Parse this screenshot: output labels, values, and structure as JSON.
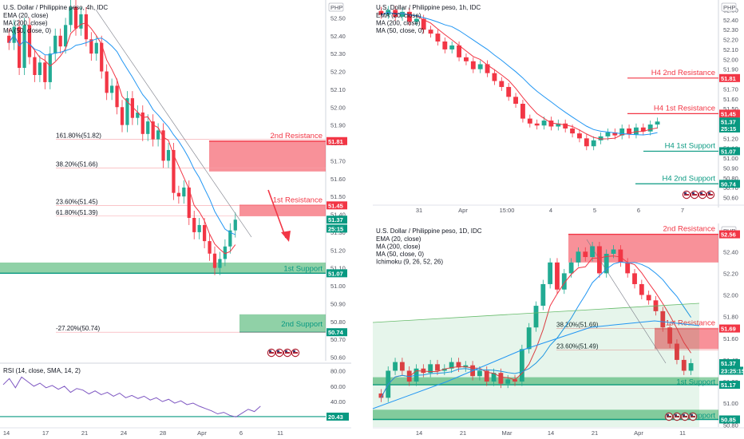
{
  "chart_data": [
    {
      "type": "candlestick",
      "panel": "4h",
      "title": "U.S. Dollar / Philippine peso, 4h, IDC",
      "indicators": [
        "EMA (20, close)",
        "MA (200, close)",
        "MA (50, close, 0)"
      ],
      "currency": "PHP",
      "ylim": [
        50.58,
        52.6
      ],
      "yticks": [
        "52.50",
        "52.40",
        "52.30",
        "52.20",
        "52.10",
        "52.00",
        "51.90",
        "51.80",
        "51.70",
        "51.60",
        "51.50",
        "51.40",
        "51.30",
        "51.20",
        "51.10",
        "51.00",
        "50.90",
        "50.80",
        "50.70",
        "50.60"
      ],
      "xticks": [
        "14",
        "17",
        "21",
        "24",
        "28",
        "Apr",
        "6",
        "11"
      ],
      "close_path": [
        52.36,
        52.45,
        52.22,
        52.46,
        52.28,
        52.18,
        52.25,
        52.14,
        52.3,
        52.4,
        52.34,
        52.46,
        52.56,
        52.44,
        52.52,
        52.38,
        52.3,
        52.36,
        52.2,
        52.08,
        52.12,
        52.0,
        51.9,
        52.05,
        51.94,
        51.97,
        51.85,
        51.92,
        51.82,
        51.87,
        51.7,
        51.76,
        51.52,
        51.5,
        51.55,
        51.38,
        51.3,
        51.34,
        51.25,
        51.18,
        51.1,
        51.15,
        51.22,
        51.31,
        51.37
      ],
      "price_tags": [
        {
          "text": "51.81",
          "value": 51.81,
          "color": "#f23645"
        },
        {
          "text": "51.45",
          "value": 51.45,
          "color": "#f23645"
        },
        {
          "text": "51.37",
          "value": 51.37,
          "color": "#089981"
        },
        {
          "text": "25:15",
          "value": 51.32,
          "color": "#089981"
        },
        {
          "text": "51.07",
          "value": 51.07,
          "color": "#089981"
        },
        {
          "text": "50.74",
          "value": 50.74,
          "color": "#089981"
        }
      ],
      "zones": [
        {
          "label": "2nd Resistance",
          "kind": "resistance",
          "top": 51.81,
          "bottom": 51.64
        },
        {
          "label": "1st Resistance",
          "kind": "resistance",
          "top": 51.45,
          "bottom": 51.39
        },
        {
          "label": "1st Support",
          "kind": "support",
          "top": 51.13,
          "bottom": 51.07
        },
        {
          "label": "2nd Support",
          "kind": "support",
          "top": 50.84,
          "bottom": 50.74
        }
      ],
      "fib_labels": [
        {
          "text": "161.80%(51.82)",
          "value": 51.82
        },
        {
          "text": "38.20%(51.66)",
          "value": 51.66
        },
        {
          "text": "23.60%(51.45)",
          "value": 51.45
        },
        {
          "text": "61.80%(51.39)",
          "value": 51.39
        },
        {
          "text": "-27.20%(50.74)",
          "value": 50.74
        }
      ],
      "rsi": {
        "label": "RSI (14, close, SMA, 14, 2)",
        "yticks": [
          "80.00",
          "60.00",
          "40.00"
        ],
        "level_tag": "20.43",
        "values": [
          62,
          70,
          58,
          72,
          66,
          60,
          64,
          58,
          61,
          56,
          60,
          52,
          57,
          55,
          50,
          54,
          49,
          52,
          47,
          51,
          45,
          48,
          44,
          47,
          42,
          45,
          40,
          43,
          38,
          41,
          36,
          38,
          34,
          31,
          28,
          24,
          26,
          22,
          20,
          25,
          30,
          27,
          34
        ]
      }
    },
    {
      "type": "candlestick",
      "panel": "1h",
      "title": "U.S. Dollar / Philippine peso, 1h, IDC",
      "indicators": [
        "EMA (20, close)",
        "MA (200, close)",
        "MA (50, close, 0)"
      ],
      "currency": "PHP",
      "ylim": [
        50.5,
        52.6
      ],
      "yticks": [
        "52.50",
        "52.40",
        "52.30",
        "52.20",
        "52.10",
        "52.00",
        "51.90",
        "51.80",
        "51.70",
        "51.60",
        "51.50",
        "51.40",
        "51.30",
        "51.20",
        "51.10",
        "51.00",
        "50.90",
        "50.80",
        "50.70",
        "50.60"
      ],
      "xticks": [
        "31",
        "Apr",
        "15:00",
        "4",
        "5",
        "6",
        "7"
      ],
      "close_path": [
        52.45,
        52.5,
        52.43,
        52.48,
        52.38,
        52.41,
        52.3,
        52.26,
        52.18,
        52.1,
        52.14,
        52.02,
        51.98,
        51.9,
        51.95,
        51.86,
        51.78,
        51.72,
        51.62,
        51.55,
        51.4,
        51.35,
        51.33,
        51.38,
        51.32,
        51.35,
        51.3,
        51.25,
        51.2,
        51.12,
        51.18,
        51.22,
        51.26,
        51.23,
        51.3,
        51.24,
        51.31,
        51.27,
        51.34,
        51.37
      ],
      "price_tags": [
        {
          "text": "51.81",
          "value": 51.81,
          "color": "#f23645"
        },
        {
          "text": "51.45",
          "value": 51.45,
          "color": "#f23645"
        },
        {
          "text": "51.37",
          "value": 51.37,
          "color": "#089981"
        },
        {
          "text": "25:15",
          "value": 51.3,
          "color": "#089981"
        },
        {
          "text": "51.07",
          "value": 51.07,
          "color": "#089981"
        },
        {
          "text": "50.74",
          "value": 50.74,
          "color": "#089981"
        }
      ],
      "levels": [
        {
          "label": "H4 2nd Resistance",
          "kind": "resistance",
          "value": 51.81
        },
        {
          "label": "H4 1st Resistance",
          "kind": "resistance",
          "value": 51.45
        },
        {
          "label": "H4 1st Support",
          "kind": "support",
          "value": 51.07
        },
        {
          "label": "H4 2nd Support",
          "kind": "support",
          "value": 50.74
        }
      ]
    },
    {
      "type": "candlestick",
      "panel": "1D",
      "title": "U.S. Dollar / Philippine peso, 1D, IDC",
      "indicators": [
        "EMA (20, close)",
        "MA (200, close)",
        "MA (50, close, 0)",
        "Ichimoku (9, 26, 52, 26)"
      ],
      "currency": "PHP",
      "ylim": [
        50.78,
        52.66
      ],
      "yticks": [
        "52.40",
        "52.20",
        "52.00",
        "51.80",
        "51.60",
        "51.40",
        "51.20",
        "51.00",
        "50.80"
      ],
      "xticks": [
        "14",
        "21",
        "Mar",
        "14",
        "21",
        "Apr",
        "11"
      ],
      "close_path": [
        51.05,
        51.3,
        51.38,
        51.3,
        51.2,
        51.32,
        51.28,
        51.36,
        51.3,
        51.32,
        51.38,
        51.33,
        51.35,
        51.25,
        51.3,
        51.2,
        51.28,
        51.18,
        51.22,
        51.2,
        51.5,
        51.7,
        51.9,
        52.1,
        52.3,
        52.05,
        52.2,
        52.3,
        52.4,
        52.35,
        52.45,
        52.2,
        52.38,
        52.42,
        52.3,
        52.2,
        52.1,
        52.0,
        51.95,
        51.85,
        51.7,
        51.55,
        51.4,
        51.3,
        51.37
      ],
      "price_tags": [
        {
          "text": "52.56",
          "value": 52.56,
          "color": "#f23645"
        },
        {
          "text": "51.69",
          "value": 51.69,
          "color": "#f23645"
        },
        {
          "text": "51.37",
          "value": 51.37,
          "color": "#089981"
        },
        {
          "text": "23:25:15",
          "value": 51.3,
          "color": "#089981"
        },
        {
          "text": "51.17",
          "value": 51.17,
          "color": "#089981"
        },
        {
          "text": "50.85",
          "value": 50.85,
          "color": "#089981"
        }
      ],
      "zones": [
        {
          "label": "2nd Resistance",
          "kind": "resistance",
          "top": 52.56,
          "bottom": 52.3
        },
        {
          "label": "1st Resistance",
          "kind": "resistance",
          "top": 51.69,
          "bottom": 51.5
        },
        {
          "label": "1st Support",
          "kind": "support",
          "top": 51.24,
          "bottom": 51.17
        },
        {
          "label": "2nd Support",
          "kind": "support",
          "top": 50.94,
          "bottom": 50.85
        }
      ],
      "fib_labels": [
        {
          "text": "38.20%(51.69)",
          "value": 51.69
        },
        {
          "text": "23.60%(51.49)",
          "value": 51.49
        }
      ]
    }
  ],
  "panel_ui": {
    "currency_badge": "PHP",
    "flag_glyph": "$"
  }
}
